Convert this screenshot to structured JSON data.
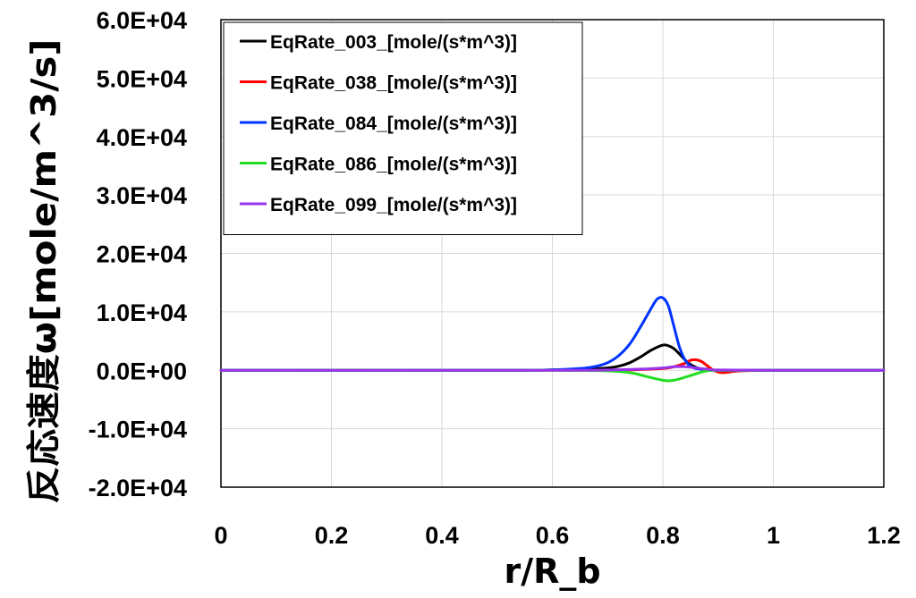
{
  "chart_data": {
    "type": "line",
    "xlabel": "r/R_b",
    "ylabel": "反応速度ω[mole/m^3/s]",
    "xlim": [
      0,
      1.2
    ],
    "ylim": [
      -20000,
      60000
    ],
    "x_ticks": [
      0,
      0.2,
      0.4,
      0.6,
      0.8,
      1.0,
      1.2
    ],
    "x_tick_labels": [
      "0",
      "0.2",
      "0.4",
      "0.6",
      "0.8",
      "1",
      "1.2"
    ],
    "y_ticks": [
      -20000,
      -10000,
      0,
      10000,
      20000,
      30000,
      40000,
      50000,
      60000
    ],
    "y_tick_labels": [
      "-2.0E+04",
      "-1.0E+04",
      "0.0E+00",
      "1.0E+04",
      "2.0E+04",
      "3.0E+04",
      "4.0E+04",
      "5.0E+04",
      "6.0E+04"
    ],
    "grid": true,
    "legend_position": "top-left",
    "series": [
      {
        "name": "EqRate_003_[mole/(s*m^3)]",
        "color": "#000000",
        "x": [
          0,
          0.5,
          0.6,
          0.65,
          0.7,
          0.72,
          0.74,
          0.76,
          0.78,
          0.8,
          0.81,
          0.82,
          0.83,
          0.84,
          0.85,
          0.86,
          0.87,
          0.88,
          0.9,
          1.0,
          1.2
        ],
        "y": [
          0,
          0,
          50,
          150,
          400,
          700,
          1300,
          2300,
          3500,
          4300,
          4200,
          3700,
          2800,
          1800,
          1000,
          500,
          200,
          50,
          0,
          0,
          0
        ]
      },
      {
        "name": "EqRate_038_[mole/(s*m^3)]",
        "color": "#ff0000",
        "x": [
          0,
          0.6,
          0.7,
          0.75,
          0.8,
          0.82,
          0.84,
          0.85,
          0.86,
          0.87,
          0.88,
          0.89,
          0.9,
          0.91,
          0.92,
          0.94,
          1.0,
          1.2
        ],
        "y": [
          0,
          0,
          0,
          100,
          300,
          600,
          1200,
          1700,
          1800,
          1500,
          800,
          100,
          -300,
          -400,
          -300,
          -100,
          0,
          0
        ]
      },
      {
        "name": "EqRate_084_[mole/(s*m^3)]",
        "color": "#0033ff",
        "x": [
          0,
          0.5,
          0.6,
          0.65,
          0.68,
          0.7,
          0.72,
          0.74,
          0.76,
          0.78,
          0.79,
          0.8,
          0.81,
          0.82,
          0.83,
          0.84,
          0.85,
          0.86,
          0.88,
          0.9,
          1.0,
          1.2
        ],
        "y": [
          0,
          0,
          100,
          300,
          700,
          1300,
          2500,
          4500,
          7500,
          10800,
          12200,
          12400,
          11000,
          7500,
          4000,
          1800,
          700,
          300,
          100,
          0,
          0,
          0
        ]
      },
      {
        "name": "EqRate_086_[mole/(s*m^3)]",
        "color": "#22dd22",
        "x": [
          0,
          0.6,
          0.7,
          0.74,
          0.76,
          0.78,
          0.8,
          0.81,
          0.82,
          0.84,
          0.86,
          0.87,
          0.88,
          0.9,
          1.0,
          1.2
        ],
        "y": [
          0,
          0,
          -100,
          -400,
          -800,
          -1300,
          -1700,
          -1800,
          -1700,
          -1200,
          -600,
          -300,
          -100,
          0,
          0,
          0
        ]
      },
      {
        "name": "EqRate_099_[mole/(s*m^3)]",
        "color": "#9933ee",
        "x": [
          0,
          0.6,
          0.7,
          0.76,
          0.8,
          0.82,
          0.84,
          0.86,
          0.88,
          0.9,
          1.0,
          1.2
        ],
        "y": [
          0,
          0,
          50,
          200,
          400,
          600,
          600,
          400,
          200,
          50,
          0,
          0
        ]
      }
    ]
  }
}
